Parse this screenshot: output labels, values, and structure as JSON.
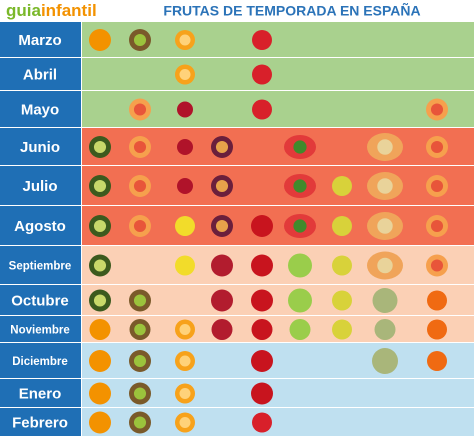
{
  "header": {
    "logo": [
      "guia",
      "infantil"
    ],
    "title": "FRUTAS DE TEMPORADA EN ESPAÑA"
  },
  "months": [
    "Marzo",
    "Abril",
    "Mayo",
    "Junio",
    "Julio",
    "Agosto",
    "Septiembre",
    "Octubre",
    "Noviembre",
    "Diciembre",
    "Enero",
    "Febrero"
  ]
}
